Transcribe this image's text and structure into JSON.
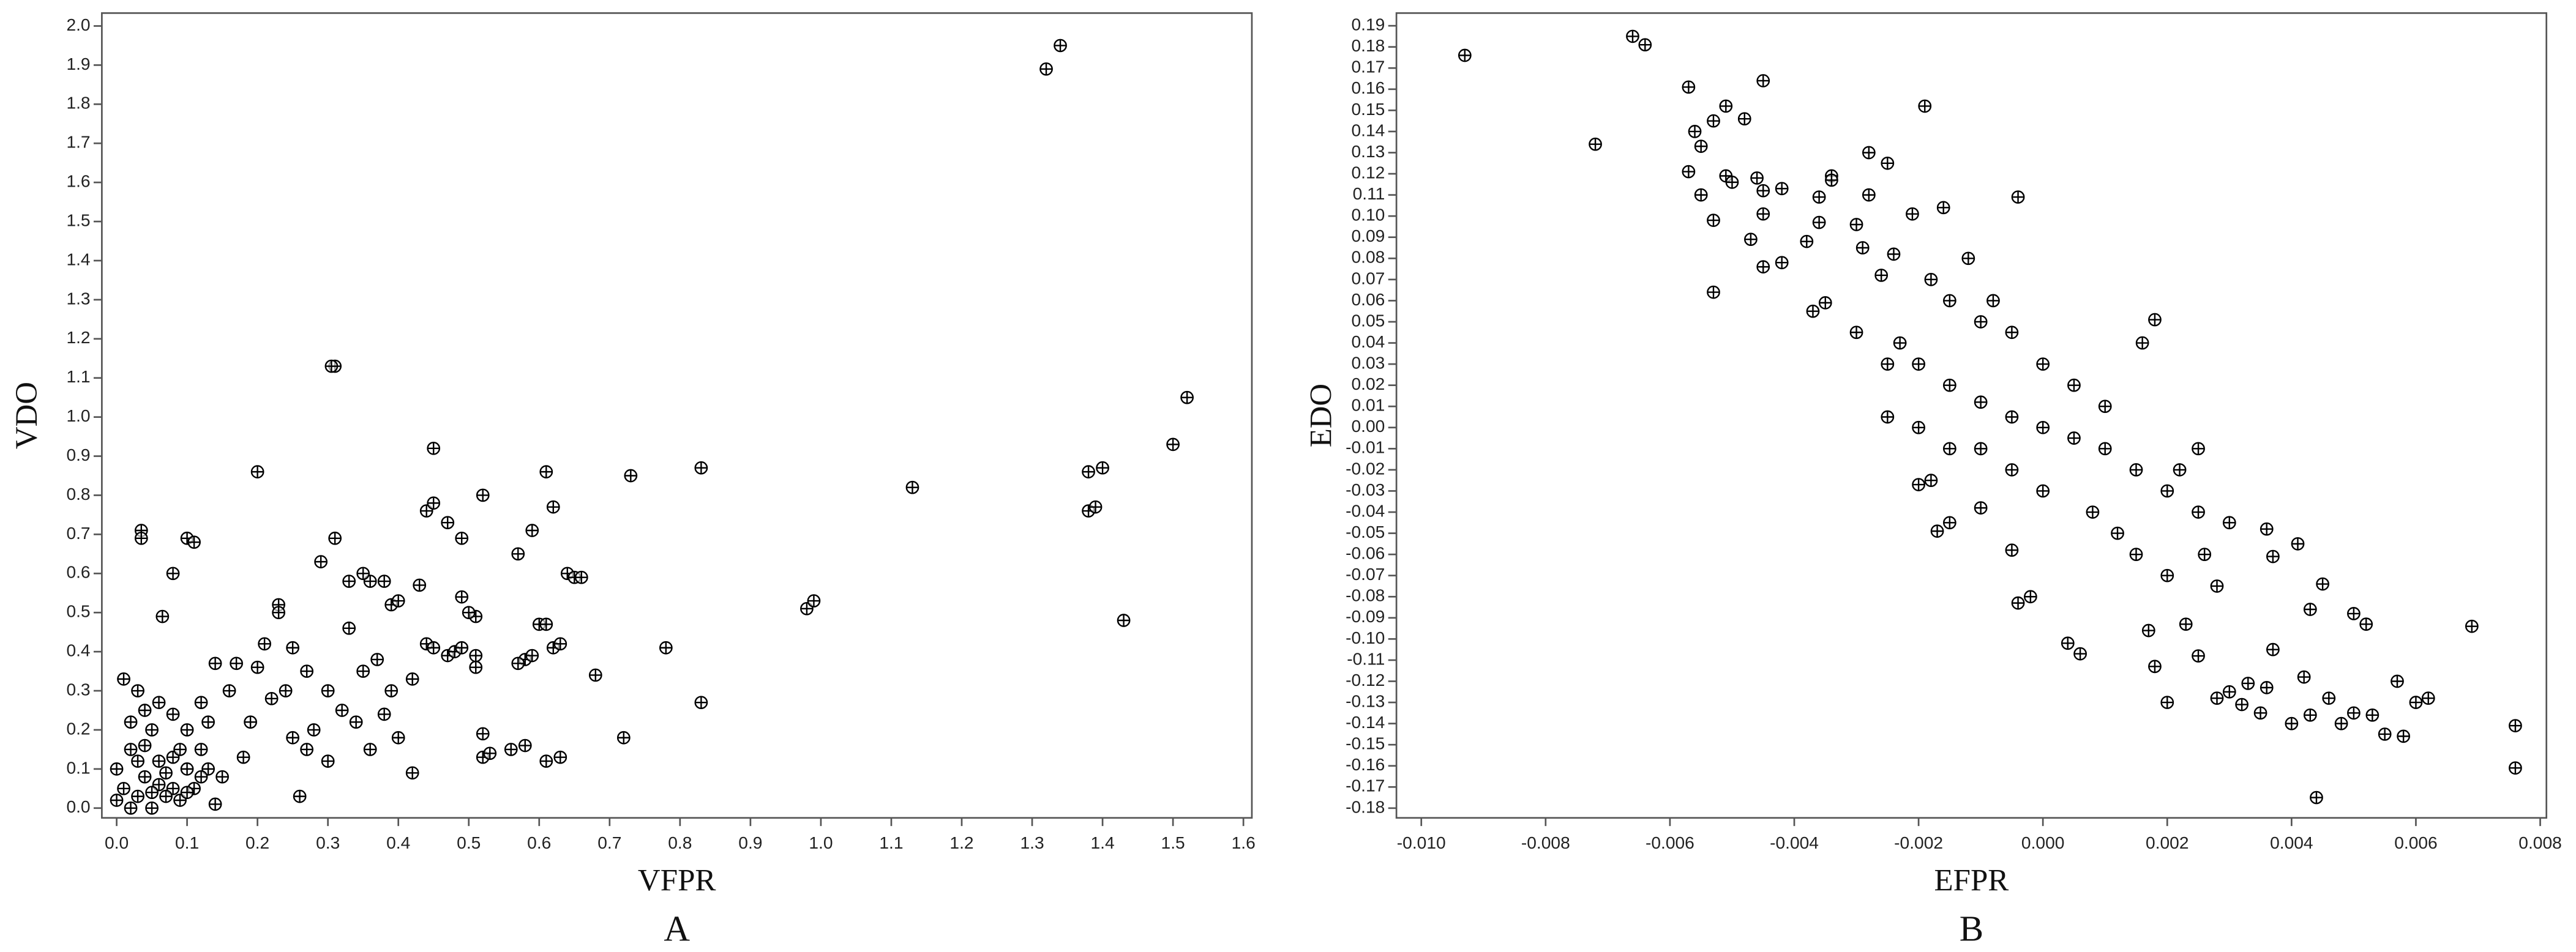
{
  "chart_data": [
    {
      "type": "scatter",
      "panel": "A",
      "x_label": "VFPR",
      "y_label": "VDO",
      "color": "#000000",
      "xlim": [
        -0.021,
        1.612
      ],
      "ylim": [
        -0.025,
        2.033
      ],
      "xticks": [
        {
          "value": 0,
          "label": "0.0"
        },
        0.1,
        0.2,
        0.3,
        0.4,
        0.5,
        0.6,
        0.7,
        0.8,
        0.9,
        {
          "value": 1,
          "label": "1.0"
        },
        1.1,
        1.2,
        1.3,
        1.4,
        1.5,
        1.6
      ],
      "yticks": [
        {
          "value": 0,
          "label": "0.0"
        },
        0.1,
        0.2,
        0.3,
        0.4,
        0.5,
        0.6,
        0.7,
        0.8,
        0.9,
        {
          "value": 1,
          "label": "1.0"
        },
        1.1,
        1.2,
        1.3,
        1.4,
        1.5,
        1.6,
        1.7,
        1.8,
        1.9,
        {
          "value": 2,
          "label": "2.0"
        }
      ],
      "x": [
        1.34,
        1.32,
        0.31,
        0.305,
        1.52,
        1.5,
        1.4,
        1.38,
        1.38,
        1.39,
        1.43,
        1.13,
        0.98,
        0.99,
        0.83,
        0.83,
        0.78,
        0.73,
        0.72,
        0.68,
        0.61,
        0.62,
        0.64,
        0.65,
        0.66,
        0.59,
        0.57,
        0.6,
        0.61,
        0.62,
        0.63,
        0.58,
        0.57,
        0.59,
        0.56,
        0.58,
        0.61,
        0.63,
        0.52,
        0.53,
        0.52,
        0.52,
        0.45,
        0.44,
        0.45,
        0.47,
        0.49,
        0.51,
        0.49,
        0.5,
        0.47,
        0.48,
        0.49,
        0.51,
        0.51,
        0.44,
        0.45,
        0.43,
        0.42,
        0.39,
        0.4,
        0.38,
        0.36,
        0.35,
        0.33,
        0.33,
        0.31,
        0.29,
        0.2,
        0.1,
        0.11,
        0.08,
        0.035,
        0.035,
        0.065,
        0.23,
        0.23,
        0.25,
        0.21,
        0.27,
        0.26,
        0.14,
        0.3,
        0.32,
        0.35,
        0.37,
        0.39,
        0.4,
        0.36,
        0.3,
        0.27,
        0.25,
        0.22,
        0.19,
        0.18,
        0.15,
        0.13,
        0.12,
        0.1,
        0.08,
        0.06,
        0.05,
        0.04,
        0.03,
        0.02,
        0.01,
        0.01,
        0.0,
        0.0,
        0.02,
        0.05,
        0.07,
        0.09,
        0.11,
        0.13,
        0.16,
        0.17,
        0.2,
        0.24,
        0.28,
        0.34,
        0.38,
        0.42,
        0.03,
        0.04,
        0.06,
        0.08,
        0.1,
        0.12,
        0.14,
        0.02,
        0.04,
        0.06,
        0.08,
        0.1,
        0.12,
        0.03,
        0.05,
        0.07,
        0.09
      ],
      "values": [
        1.95,
        1.89,
        1.13,
        1.13,
        1.05,
        0.93,
        0.87,
        0.86,
        0.76,
        0.77,
        0.48,
        0.82,
        0.51,
        0.53,
        0.87,
        0.27,
        0.41,
        0.85,
        0.18,
        0.34,
        0.86,
        0.77,
        0.6,
        0.59,
        0.59,
        0.71,
        0.65,
        0.47,
        0.47,
        0.41,
        0.42,
        0.38,
        0.37,
        0.39,
        0.15,
        0.16,
        0.12,
        0.13,
        0.13,
        0.14,
        0.19,
        0.8,
        0.92,
        0.76,
        0.78,
        0.73,
        0.69,
        0.49,
        0.54,
        0.5,
        0.39,
        0.4,
        0.41,
        0.36,
        0.39,
        0.42,
        0.41,
        0.57,
        0.09,
        0.52,
        0.53,
        0.58,
        0.58,
        0.6,
        0.58,
        0.46,
        0.69,
        0.63,
        0.86,
        0.69,
        0.68,
        0.6,
        0.71,
        0.69,
        0.49,
        0.52,
        0.5,
        0.41,
        0.42,
        0.35,
        0.03,
        0.01,
        0.3,
        0.25,
        0.35,
        0.38,
        0.3,
        0.18,
        0.15,
        0.12,
        0.15,
        0.18,
        0.28,
        0.22,
        0.13,
        0.08,
        0.22,
        0.15,
        0.1,
        0.05,
        0.12,
        0.2,
        0.08,
        0.03,
        0.15,
        0.33,
        0.05,
        0.1,
        0.02,
        0.0,
        0.0,
        0.03,
        0.02,
        0.05,
        0.1,
        0.3,
        0.37,
        0.36,
        0.3,
        0.2,
        0.22,
        0.24,
        0.33,
        0.3,
        0.25,
        0.27,
        0.24,
        0.2,
        0.27,
        0.37,
        0.22,
        0.16,
        0.06,
        0.13,
        0.04,
        0.08,
        0.12,
        0.04,
        0.09,
        0.15
      ]
    },
    {
      "type": "scatter",
      "panel": "B",
      "x_label": "EFPR",
      "y_label": "EDO",
      "color": "#000000",
      "xlim": [
        -0.0104,
        0.0081
      ],
      "ylim": [
        -0.1846,
        0.196
      ],
      "xticks": [
        {
          "value": -0.01,
          "label": "-0.010"
        },
        -0.008,
        -0.006,
        -0.004,
        -0.002,
        {
          "value": 0,
          "label": "0.000"
        },
        0.002,
        0.004,
        0.006,
        0.008
      ],
      "yticks": [
        0.19,
        0.18,
        0.17,
        0.16,
        0.15,
        0.14,
        0.13,
        0.12,
        0.11,
        {
          "value": 0.1,
          "label": "0.10"
        },
        0.09,
        0.08,
        0.07,
        0.06,
        0.05,
        0.04,
        0.03,
        0.02,
        0.01,
        {
          "value": 0,
          "label": "0.00"
        },
        -0.01,
        -0.02,
        -0.03,
        -0.04,
        -0.05,
        -0.06,
        -0.07,
        -0.08,
        -0.09,
        {
          "value": -0.1,
          "label": "-0.10"
        },
        -0.11,
        -0.12,
        -0.13,
        -0.14,
        -0.15,
        -0.16,
        -0.17,
        -0.18
      ],
      "x": [
        -0.0093,
        -0.0066,
        -0.0064,
        -0.0072,
        -0.0057,
        -0.0045,
        -0.0053,
        -0.0051,
        -0.0048,
        -0.0056,
        -0.0055,
        -0.0057,
        -0.0051,
        -0.005,
        -0.0055,
        -0.0053,
        -0.0053,
        -0.0046,
        -0.0045,
        -0.0042,
        -0.0045,
        -0.0047,
        -0.0045,
        -0.0042,
        -0.0038,
        -0.0036,
        -0.0036,
        -0.0034,
        -0.0034,
        -0.0037,
        -0.0035,
        -0.0028,
        -0.0025,
        -0.0019,
        -0.0028,
        -0.003,
        -0.0029,
        -0.0026,
        -0.0024,
        -0.0021,
        -0.0016,
        -0.0004,
        -0.003,
        -0.0025,
        -0.0025,
        -0.002,
        -0.0017,
        -0.0015,
        -0.0018,
        -0.001,
        -0.0005,
        -0.0004,
        -0.0002,
        0.0004,
        0.0006,
        0.0017,
        0.0018,
        0.002,
        0.0023,
        0.0025,
        0.0028,
        0.003,
        0.0032,
        0.0033,
        0.0035,
        0.0036,
        0.0037,
        0.004,
        0.0042,
        0.0043,
        0.0044,
        0.0046,
        0.0048,
        0.005,
        0.0053,
        0.0055,
        0.0057,
        0.0058,
        0.006,
        0.0062,
        0.0069,
        0.0076,
        0.0076,
        0.0045,
        0.0043,
        0.005,
        0.0052,
        0.0041,
        0.0037,
        0.0036,
        0.003,
        0.0025,
        0.002,
        0.0015,
        0.001,
        0.0005,
        0.0,
        -0.0005,
        -0.001,
        -0.0015,
        -0.002,
        -0.0023,
        0.0018,
        0.0016,
        -0.001,
        -0.0005,
        0.0,
        0.0005,
        0.001,
        0.0,
        -0.0005,
        -0.001,
        0.0012,
        0.0008,
        0.0015,
        0.002,
        0.0026,
        0.0028,
        -0.0015,
        -0.0018,
        -0.0012,
        -0.0008,
        0.0022,
        0.0025,
        -0.002,
        -0.0015
      ],
      "values": [
        0.176,
        0.185,
        0.181,
        0.134,
        0.161,
        0.164,
        0.145,
        0.152,
        0.146,
        0.14,
        0.133,
        0.121,
        0.119,
        0.116,
        0.11,
        0.098,
        0.064,
        0.118,
        0.112,
        0.113,
        0.101,
        0.089,
        0.076,
        0.078,
        0.088,
        0.097,
        0.109,
        0.119,
        0.117,
        0.055,
        0.059,
        0.13,
        0.125,
        0.152,
        0.11,
        0.096,
        0.085,
        0.072,
        0.082,
        0.101,
        0.104,
        0.109,
        0.045,
        0.03,
        0.005,
        -0.027,
        -0.049,
        -0.045,
        -0.025,
        -0.038,
        -0.058,
        -0.083,
        -0.08,
        -0.102,
        -0.107,
        -0.096,
        -0.113,
        -0.13,
        -0.093,
        -0.108,
        -0.128,
        -0.125,
        -0.131,
        -0.121,
        -0.135,
        -0.123,
        -0.105,
        -0.14,
        -0.118,
        -0.136,
        -0.175,
        -0.128,
        -0.14,
        -0.135,
        -0.136,
        -0.145,
        -0.12,
        -0.146,
        -0.13,
        -0.128,
        -0.094,
        -0.141,
        -0.161,
        -0.074,
        -0.086,
        -0.088,
        -0.093,
        -0.055,
        -0.061,
        -0.048,
        -0.045,
        -0.04,
        -0.03,
        -0.02,
        -0.01,
        -0.005,
        0.0,
        0.005,
        0.012,
        0.02,
        0.03,
        0.04,
        0.051,
        0.04,
        0.05,
        0.045,
        0.03,
        0.02,
        0.01,
        -0.03,
        -0.02,
        -0.01,
        -0.05,
        -0.04,
        -0.06,
        -0.07,
        -0.06,
        -0.075,
        0.06,
        0.07,
        0.08,
        0.06,
        -0.02,
        -0.01,
        0.0,
        -0.01
      ]
    }
  ]
}
